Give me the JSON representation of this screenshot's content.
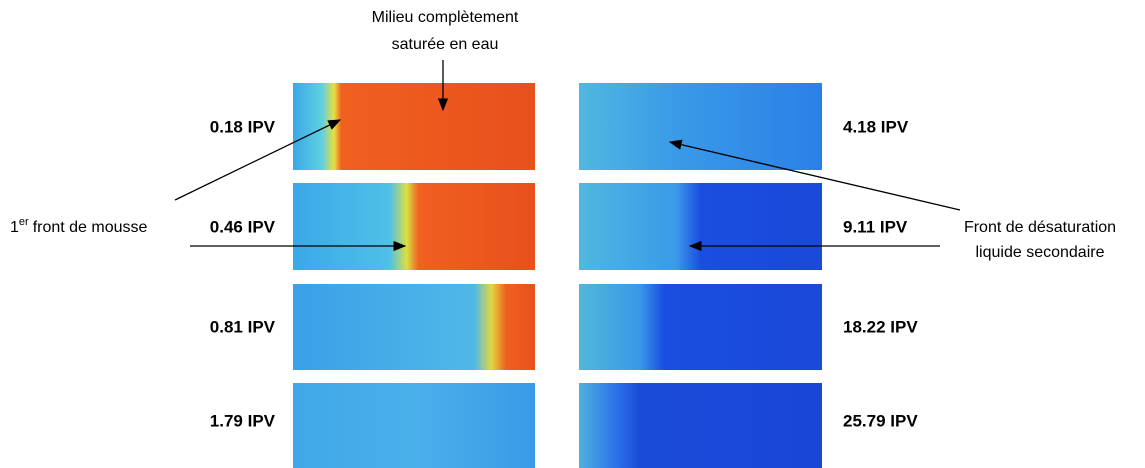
{
  "annotations": {
    "top": {
      "lines": [
        "Milieu complètement",
        "saturée en eau"
      ]
    },
    "left": {
      "number": "1",
      "superscript": "er",
      "text": "front de mousse"
    },
    "right": {
      "lines": [
        "Front de désaturation",
        "liquide secondaire"
      ]
    }
  },
  "panels": {
    "left": [
      {
        "label": "0.18 IPV"
      },
      {
        "label": "0.46 IPV"
      },
      {
        "label": "0.81 IPV"
      },
      {
        "label": "1.79 IPV"
      }
    ],
    "right": [
      {
        "label": "4.18 IPV"
      },
      {
        "label": "9.11 IPV"
      },
      {
        "label": "18.22 IPV"
      },
      {
        "label": "25.79 IPV"
      }
    ]
  }
}
